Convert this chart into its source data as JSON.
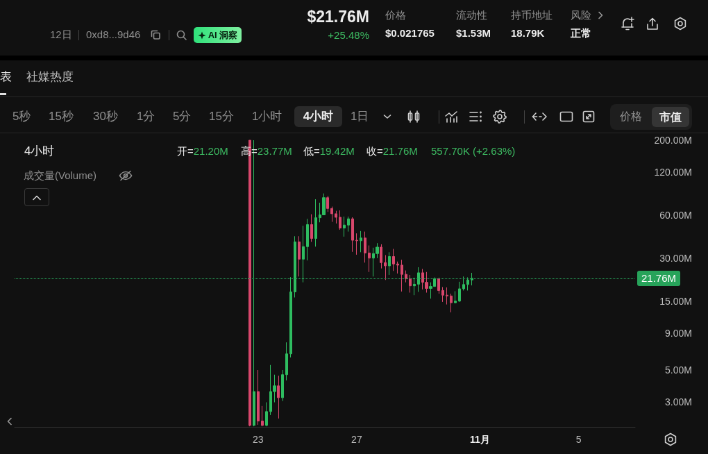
{
  "chart_data": {
    "type": "candlestick",
    "annotations": [
      "12日",
      "0xd8...9d46",
      "AI 洞察",
      "$21.76M",
      "+25.48%",
      "价格",
      "$0.021765",
      "流动性",
      "$1.53M",
      "持币地址",
      "18.79K",
      "风险",
      "正常",
      "表",
      "社媒热度",
      "5秒",
      "15秒",
      "30秒",
      "1分",
      "5分",
      "15分",
      "1小时",
      "4小时",
      "1日",
      "价格",
      "市值",
      "4小时",
      "开=21.20M",
      "高=23.77M",
      "低=19.42M",
      "收=21.76M",
      "557.70K (+2.63%)",
      "成交量(Volume)"
    ],
    "x": [
      "--10-22T16:00",
      "--10-22T20:00",
      "--10-23T00:00",
      "--10-23T04:00",
      "--10-23T08:00",
      "--10-23T12:00",
      "--10-23T16:00",
      "--10-23T20:00",
      "--10-24T00:00",
      "--10-24T04:00",
      "--10-24T08:00",
      "--10-24T12:00",
      "--10-24T16:00",
      "--10-24T20:00",
      "--10-25T00:00",
      "--10-25T04:00",
      "--10-25T08:00",
      "--10-25T12:00",
      "--10-25T16:00",
      "--10-25T20:00",
      "--10-26T00:00",
      "--10-26T04:00",
      "--10-26T08:00",
      "--10-26T12:00",
      "--10-26T16:00",
      "--10-26T20:00",
      "--10-27T00:00",
      "--10-27T04:00",
      "--10-27T08:00",
      "--10-27T12:00",
      "--10-27T16:00",
      "--10-27T20:00",
      "--10-28T00:00",
      "--10-28T04:00",
      "--10-28T08:00",
      "--10-28T12:00",
      "--10-28T16:00",
      "--10-28T20:00",
      "--10-29T00:00",
      "--10-29T04:00",
      "--10-29T08:00",
      "--10-29T12:00",
      "--10-29T16:00",
      "--10-29T20:00",
      "--10-30T00:00",
      "--10-30T04:00",
      "--10-30T08:00",
      "--10-30T12:00",
      "--10-30T16:00",
      "--10-30T20:00",
      "--10-31T00:00",
      "--10-31T04:00",
      "--10-31T08:00",
      "--10-31T12:00",
      "--10-31T16:00"
    ],
    "ohlc": [
      [
        200,
        200,
        2.02,
        2.05
      ],
      [
        2.05,
        200,
        2.02,
        3.53
      ],
      [
        3.53,
        4.99,
        2.07,
        2.2
      ],
      [
        2.2,
        2.8,
        2.02,
        2.05
      ],
      [
        2.05,
        2.97,
        2.02,
        2.56
      ],
      [
        2.56,
        5.41,
        2.42,
        3.53
      ],
      [
        3.53,
        4.63,
        2.97,
        3.87
      ],
      [
        3.87,
        4.55,
        2.29,
        3.2
      ],
      [
        3.2,
        4.99,
        3.03,
        4.63
      ],
      [
        4.63,
        7.78,
        4.22,
        6.47
      ],
      [
        6.47,
        22.2,
        6.11,
        17.5
      ],
      [
        17.5,
        42.8,
        16.0,
        39.1
      ],
      [
        39.1,
        42.8,
        22.4,
        29.6
      ],
      [
        29.6,
        50.6,
        20.4,
        36.2
      ],
      [
        36.2,
        56.6,
        29.0,
        51.6
      ],
      [
        51.6,
        60.9,
        39.1,
        41.3
      ],
      [
        41.3,
        77.5,
        36.2,
        57.6
      ],
      [
        57.6,
        73.3,
        53.5,
        60.3
      ],
      [
        60.3,
        85.1,
        60.3,
        79.5
      ],
      [
        79.5,
        81.9,
        63.2,
        66.8
      ],
      [
        66.8,
        68.9,
        53.9,
        61.4
      ],
      [
        61.4,
        64.4,
        52.5,
        58.0
      ],
      [
        58.0,
        64.8,
        47.5,
        48.8
      ],
      [
        48.8,
        58.7,
        42.5,
        51.2
      ],
      [
        51.2,
        58.7,
        46.1,
        56.6
      ],
      [
        56.6,
        58.0,
        33.3,
        40.1
      ],
      [
        40.1,
        44.8,
        31.8,
        39.8
      ],
      [
        39.8,
        46.5,
        33.1,
        41.6
      ],
      [
        41.6,
        46.1,
        28.0,
        32.7
      ],
      [
        32.7,
        36.9,
        24.1,
        30.1
      ],
      [
        30.1,
        35.6,
        22.4,
        32.4
      ],
      [
        32.4,
        38.3,
        30.1,
        35.9
      ],
      [
        35.9,
        37.6,
        25.5,
        28.0
      ],
      [
        28.0,
        31.6,
        21.2,
        26.6
      ],
      [
        26.6,
        33.1,
        23.0,
        30.9
      ],
      [
        30.9,
        34.9,
        24.5,
        27.4
      ],
      [
        27.4,
        28.5,
        23.5,
        26.9
      ],
      [
        26.9,
        29.3,
        17.6,
        23.2
      ],
      [
        23.2,
        24.7,
        20.4,
        21.6
      ],
      [
        21.6,
        23.0,
        17.3,
        19.3
      ],
      [
        19.3,
        22.0,
        16.6,
        19.8
      ],
      [
        19.8,
        26.0,
        17.5,
        23.8
      ],
      [
        23.8,
        25.3,
        18.2,
        20.4
      ],
      [
        20.4,
        24.1,
        17.3,
        18.5
      ],
      [
        18.5,
        20.4,
        15.7,
        19.1
      ],
      [
        19.1,
        22.1,
        19.0,
        21.6
      ],
      [
        21.6,
        22.0,
        17.0,
        17.9
      ],
      [
        17.9,
        18.9,
        14.9,
        16.6
      ],
      [
        16.6,
        18.8,
        14.3,
        16.4
      ],
      [
        16.4,
        17.0,
        12.6,
        14.7
      ],
      [
        14.7,
        17.7,
        14.6,
        15.1
      ],
      [
        15.1,
        20.6,
        14.9,
        18.4
      ],
      [
        18.4,
        22.4,
        17.9,
        19.7
      ],
      [
        19.7,
        22.1,
        17.9,
        21.2
      ],
      [
        21.2,
        23.77,
        19.42,
        21.76
      ]
    ],
    "colors": [
      "#d8476c",
      "#2ebd60",
      "#d8476c",
      "#d8476c",
      "#2ebd60",
      "#2ebd60",
      "#2ebd60",
      "#d8476c",
      "#2ebd60",
      "#2ebd60",
      "#2ebd60",
      "#2ebd60",
      "#d8476c",
      "#2ebd60",
      "#2ebd60",
      "#d8476c",
      "#2ebd60",
      "#2ebd60",
      "#2ebd60",
      "#d8476c",
      "#d8476c",
      "#d8476c",
      "#d8476c",
      "#2ebd60",
      "#2ebd60",
      "#d8476c",
      "#d8476c",
      "#2ebd60",
      "#d8476c",
      "#d8476c",
      "#2ebd60",
      "#2ebd60",
      "#d8476c",
      "#d8476c",
      "#2ebd60",
      "#d8476c",
      "#d8476c",
      "#d8476c",
      "#d8476c",
      "#d8476c",
      "#2ebd60",
      "#2ebd60",
      "#d8476c",
      "#d8476c",
      "#2ebd60",
      "#2ebd60",
      "#d8476c",
      "#d8476c",
      "#d8476c",
      "#d8476c",
      "#2ebd60",
      "#2ebd60",
      "#2ebd60",
      "#2ebd60",
      "#2ebd60"
    ],
    "xlim": [
      "--10-13T03:00",
      "--11-07T07:00"
    ],
    "xticks": [
      {
        "value": "--10-23",
        "label": "23"
      },
      {
        "value": "--10-27",
        "label": "27"
      },
      {
        "value": "--11-01",
        "label": "11月"
      },
      {
        "value": "--11-05",
        "label": "5"
      }
    ],
    "ylim": [
      2,
      200
    ],
    "yticks": [
      {
        "value": 3,
        "label": "3.00M"
      },
      {
        "value": 5,
        "label": "5.00M"
      },
      {
        "value": 9,
        "label": "9.00M"
      },
      {
        "value": 15,
        "label": "15.00M"
      },
      {
        "value": 30,
        "label": "30.00M"
      },
      {
        "value": 60,
        "label": "60.00M"
      },
      {
        "value": 120,
        "label": "120.00M"
      },
      {
        "value": 200,
        "label": "200.00M"
      }
    ],
    "log": true,
    "ref_lines": [
      {
        "axis": "y",
        "value": 21.76,
        "label": "21.76M",
        "color": "#27a35a",
        "line_style": "dotted"
      }
    ]
  }
}
